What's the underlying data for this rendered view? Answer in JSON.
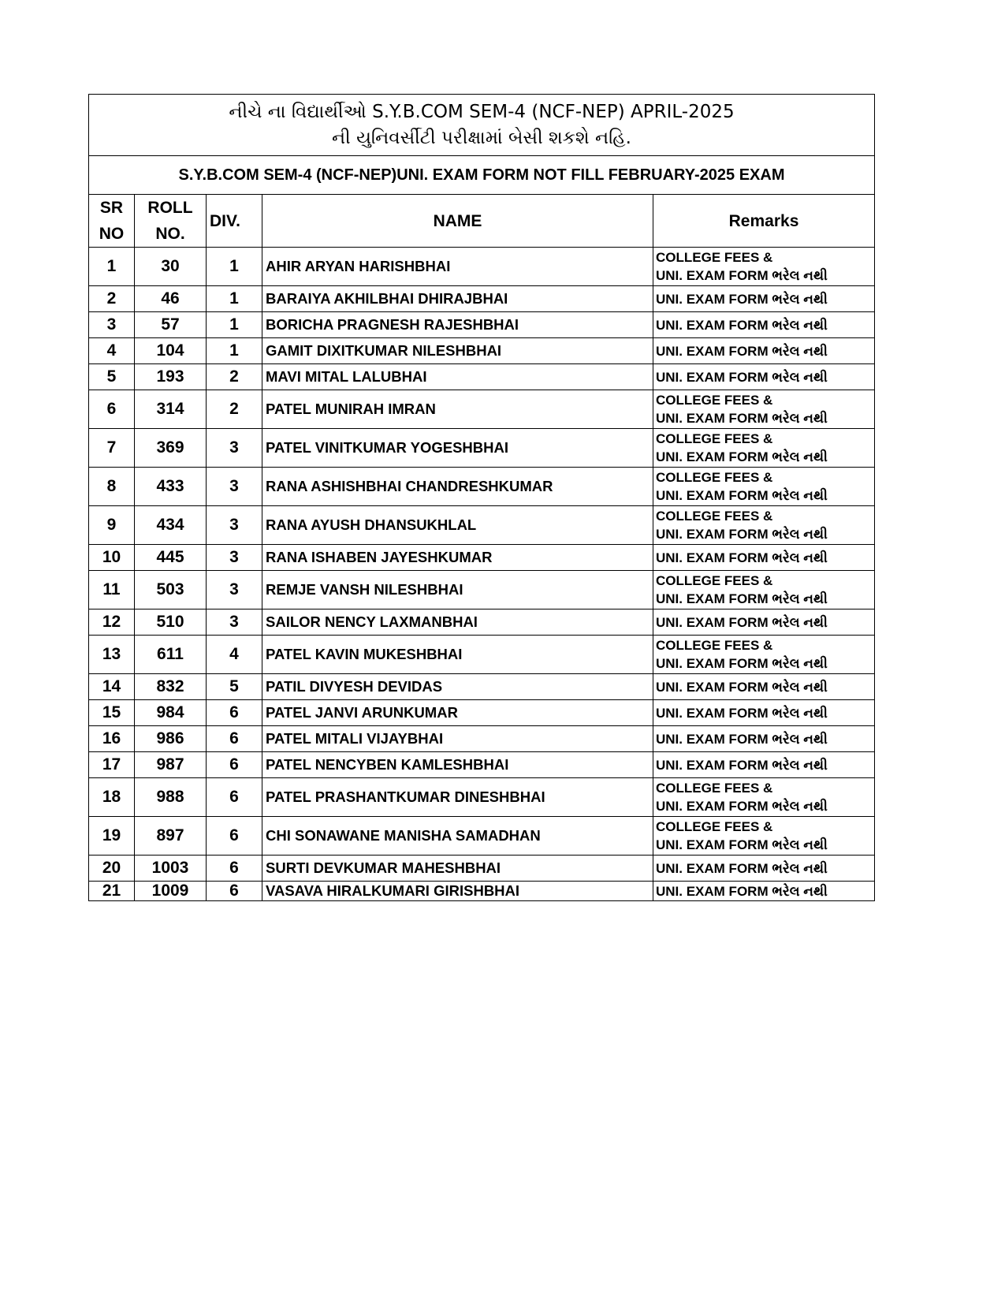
{
  "title_line1": "નીચે ના વિદ્યાર્થીઓ S.Y.B.COM SEM-4 (NCF-NEP) APRIL-2025",
  "title_line2": "ની યુનિવર્સીટી પરીક્ષામાં બેસી શકશે નહિ.",
  "subtitle": "S.Y.B.COM SEM-4 (NCF-NEP)UNI. EXAM FORM NOT FILL FEBRUARY-2025 EXAM",
  "headers": {
    "sr_1": "SR",
    "sr_2": "NO",
    "roll_1": "ROLL",
    "roll_2": "NO.",
    "div": "DIV.",
    "name": "NAME",
    "remarks": "Remarks"
  },
  "remark_fees": "COLLEGE FEES &",
  "remark_form": "UNI. EXAM FORM ભરેલ નથી",
  "rows": [
    {
      "sr": "1",
      "roll": "30",
      "div": "1",
      "name": "AHIR ARYAN HARISHBHAI",
      "fees": true
    },
    {
      "sr": "2",
      "roll": "46",
      "div": "1",
      "name": "BARAIYA AKHILBHAI DHIRAJBHAI",
      "fees": false
    },
    {
      "sr": "3",
      "roll": "57",
      "div": "1",
      "name": "BORICHA PRAGNESH RAJESHBHAI",
      "fees": false
    },
    {
      "sr": "4",
      "roll": "104",
      "div": "1",
      "name": "GAMIT DIXITKUMAR NILESHBHAI",
      "fees": false
    },
    {
      "sr": "5",
      "roll": "193",
      "div": "2",
      "name": "MAVI MITAL LALUBHAI",
      "fees": false
    },
    {
      "sr": "6",
      "roll": "314",
      "div": "2",
      "name": "PATEL MUNIRAH IMRAN",
      "fees": true
    },
    {
      "sr": "7",
      "roll": "369",
      "div": "3",
      "name": "PATEL VINITKUMAR YOGESHBHAI",
      "fees": true
    },
    {
      "sr": "8",
      "roll": "433",
      "div": "3",
      "name": "RANA ASHISHBHAI CHANDRESHKUMAR",
      "fees": true
    },
    {
      "sr": "9",
      "roll": "434",
      "div": "3",
      "name": "RANA AYUSH DHANSUKHLAL",
      "fees": true
    },
    {
      "sr": "10",
      "roll": "445",
      "div": "3",
      "name": "RANA ISHABEN JAYESHKUMAR",
      "fees": false
    },
    {
      "sr": "11",
      "roll": "503",
      "div": "3",
      "name": "REMJE VANSH NILESHBHAI",
      "fees": true
    },
    {
      "sr": "12",
      "roll": "510",
      "div": "3",
      "name": "SAILOR NENCY LAXMANBHAI",
      "fees": false
    },
    {
      "sr": "13",
      "roll": "611",
      "div": "4",
      "name": "PATEL KAVIN MUKESHBHAI",
      "fees": true
    },
    {
      "sr": "14",
      "roll": "832",
      "div": "5",
      "name": "PATIL DIVYESH DEVIDAS",
      "fees": false
    },
    {
      "sr": "15",
      "roll": "984",
      "div": "6",
      "name": "PATEL JANVI ARUNKUMAR",
      "fees": false
    },
    {
      "sr": "16",
      "roll": "986",
      "div": "6",
      "name": "PATEL MITALI VIJAYBHAI",
      "fees": false
    },
    {
      "sr": "17",
      "roll": "987",
      "div": "6",
      "name": "PATEL NENCYBEN KAMLESHBHAI",
      "fees": false
    },
    {
      "sr": "18",
      "roll": "988",
      "div": "6",
      "name": "PATEL PRASHANTKUMAR DINESHBHAI",
      "fees": true
    },
    {
      "sr": "19",
      "roll": "897",
      "div": "6",
      "name": "CHI SONAWANE MANISHA SAMADHAN",
      "fees": true
    },
    {
      "sr": "20",
      "roll": "1003",
      "div": "6",
      "name": "SURTI DEVKUMAR MAHESHBHAI",
      "fees": false
    },
    {
      "sr": "21",
      "roll": "1009",
      "div": "6",
      "name": "VASAVA HIRALKUMARI GIRISHBHAI",
      "fees": false
    }
  ]
}
